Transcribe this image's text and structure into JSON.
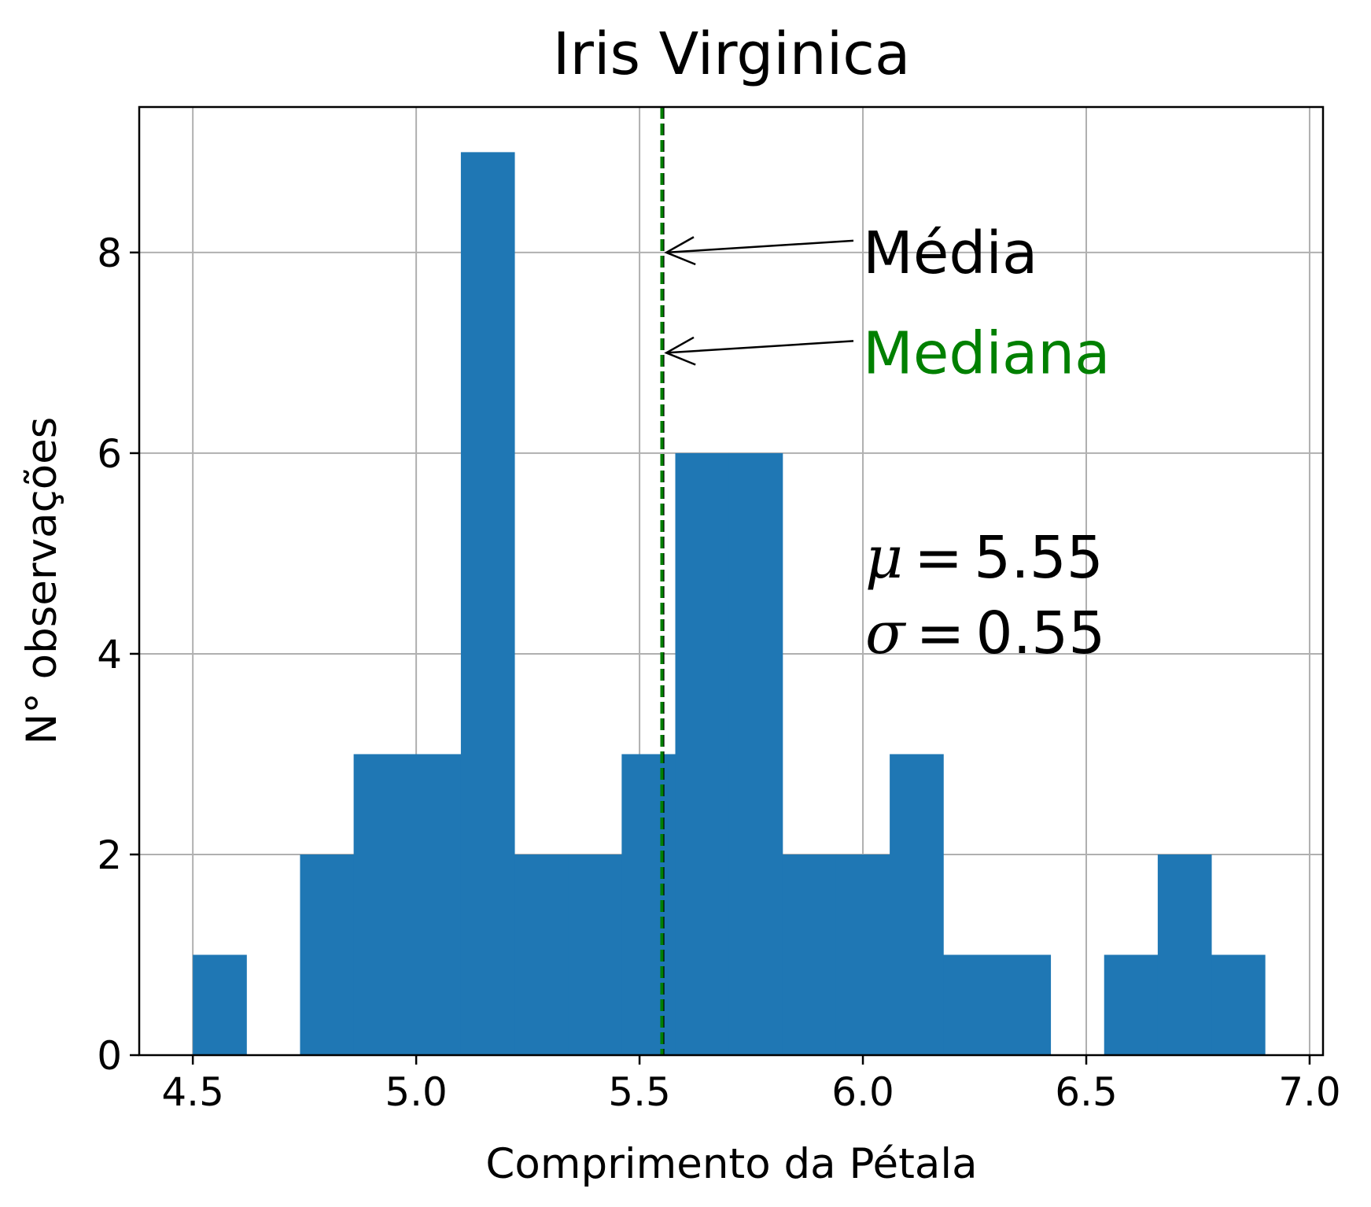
{
  "chart_data": {
    "type": "bar",
    "title": "Iris Virginica",
    "xlabel": "Comprimento da Pétala",
    "ylabel": "N° observações",
    "xlim": [
      4.38,
      7.03
    ],
    "ylim": [
      0,
      9.45
    ],
    "xticks": [
      "4.5",
      "5.0",
      "5.5",
      "6.0",
      "6.5",
      "7.0"
    ],
    "yticks": [
      "0",
      "2",
      "4",
      "6",
      "8"
    ],
    "grid": true,
    "bar_color": "#1f77b4",
    "bins": [
      {
        "x0": 4.5,
        "x1": 4.62,
        "count": 1
      },
      {
        "x0": 4.62,
        "x1": 4.74,
        "count": 0
      },
      {
        "x0": 4.74,
        "x1": 4.86,
        "count": 2
      },
      {
        "x0": 4.86,
        "x1": 4.98,
        "count": 3
      },
      {
        "x0": 4.98,
        "x1": 5.1,
        "count": 3
      },
      {
        "x0": 5.1,
        "x1": 5.22,
        "count": 9
      },
      {
        "x0": 5.22,
        "x1": 5.34,
        "count": 2
      },
      {
        "x0": 5.34,
        "x1": 5.46,
        "count": 2
      },
      {
        "x0": 5.46,
        "x1": 5.58,
        "count": 3
      },
      {
        "x0": 5.58,
        "x1": 5.7,
        "count": 6
      },
      {
        "x0": 5.7,
        "x1": 5.82,
        "count": 6
      },
      {
        "x0": 5.82,
        "x1": 5.94,
        "count": 2
      },
      {
        "x0": 5.94,
        "x1": 6.06,
        "count": 2
      },
      {
        "x0": 6.06,
        "x1": 6.18,
        "count": 3
      },
      {
        "x0": 6.18,
        "x1": 6.3,
        "count": 1
      },
      {
        "x0": 6.3,
        "x1": 6.42,
        "count": 1
      },
      {
        "x0": 6.42,
        "x1": 6.54,
        "count": 0
      },
      {
        "x0": 6.54,
        "x1": 6.66,
        "count": 1
      },
      {
        "x0": 6.66,
        "x1": 6.78,
        "count": 2
      },
      {
        "x0": 6.78,
        "x1": 6.9,
        "count": 1
      }
    ],
    "mean_line": {
      "x": 5.552,
      "color": "#000000",
      "style": "dashed"
    },
    "median_line": {
      "x": 5.55,
      "color": "#008000",
      "style": "dashed"
    },
    "annotations": [
      {
        "text": "Média",
        "color": "#000000",
        "text_x": 6.0,
        "text_y": 8.0,
        "arrow_x": 5.56,
        "arrow_y": 8.0
      },
      {
        "text": "Mediana",
        "color": "#008000",
        "text_x": 6.0,
        "text_y": 7.0,
        "arrow_x": 5.56,
        "arrow_y": 7.0
      }
    ],
    "stats": {
      "mu_symbol": "μ",
      "mu_value": "5.55",
      "sigma_symbol": "σ",
      "sigma_value": "0.55",
      "equals": "="
    }
  }
}
